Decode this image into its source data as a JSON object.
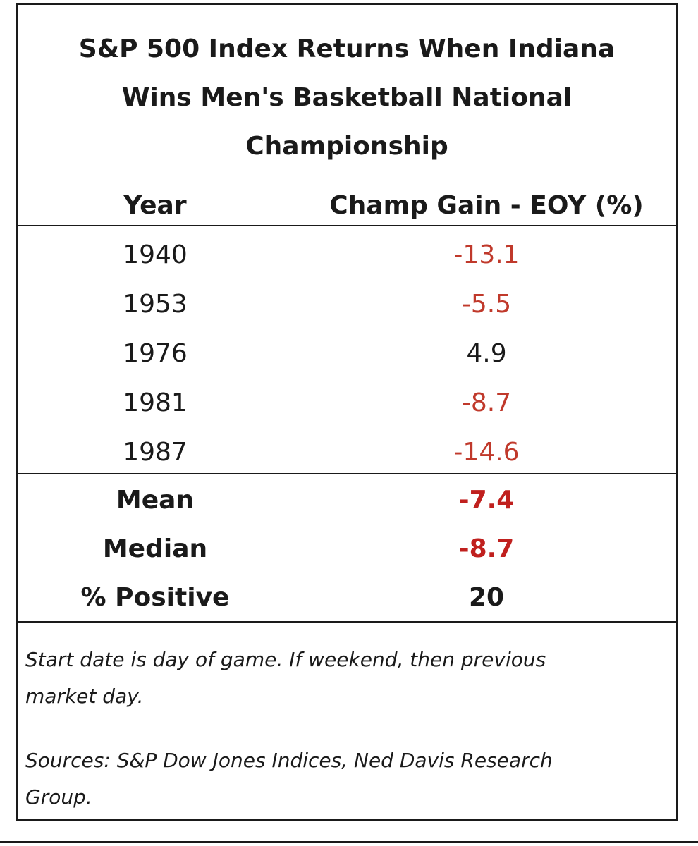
{
  "chart_data": {
    "type": "table",
    "title_lines": [
      "S&P 500 Index Returns When Indiana",
      "Wins Men's Basketball National",
      "Championship"
    ],
    "columns": [
      "Year",
      "Champ Gain - EOY (%)"
    ],
    "rows": [
      {
        "year": "1940",
        "value": "-13.1",
        "numeric": -13.1
      },
      {
        "year": "1953",
        "value": "-5.5",
        "numeric": -5.5
      },
      {
        "year": "1976",
        "value": "4.9",
        "numeric": 4.9
      },
      {
        "year": "1981",
        "value": "-8.7",
        "numeric": -8.7
      },
      {
        "year": "1987",
        "value": "-14.6",
        "numeric": -14.6
      }
    ],
    "stats": [
      {
        "label": "Mean",
        "value": "-7.4",
        "numeric": -7.4
      },
      {
        "label": "Median",
        "value": "-8.7",
        "numeric": -8.7
      },
      {
        "label": "% Positive",
        "value": "20",
        "numeric": 20
      }
    ],
    "notes": [
      [
        "Start date is day of game. If weekend, then previous",
        "market day."
      ],
      [
        "Sources: S&P Dow Jones Indices, Ned Davis Research",
        "Group."
      ]
    ],
    "negative_color": "#c0392b",
    "text_color": "#1a1a1a"
  }
}
